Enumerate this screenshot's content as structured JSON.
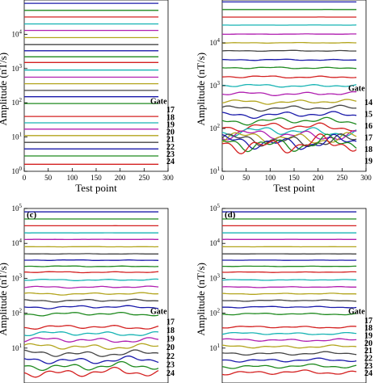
{
  "chart_data": [
    {
      "panel_label": "",
      "type": "line",
      "xlabel": "Test point",
      "ylabel": "Amplitude (nT/s)",
      "x_ticks": [
        "0",
        "50",
        "100",
        "150",
        "200",
        "250",
        "300"
      ],
      "y_ticks": [
        {
          "base": "10",
          "exp": "0"
        },
        {
          "base": "10",
          "exp": "1"
        },
        {
          "base": "10",
          "exp": "2"
        },
        {
          "base": "10",
          "exp": "3"
        },
        {
          "base": "10",
          "exp": "4"
        }
      ],
      "y_scale": "log",
      "xlim": [
        0,
        300
      ],
      "ylim": [
        1,
        100000
      ],
      "gate_title": "Gate",
      "gate_labels": [
        "17",
        "18",
        "19",
        "20",
        "21",
        "22",
        "23",
        "24"
      ],
      "series_levels": [
        80000,
        50000,
        32000,
        20000,
        13000,
        8000,
        5000,
        3300,
        2200,
        1500,
        900,
        560,
        360,
        230,
        150,
        95,
        40,
        26,
        17,
        11,
        7,
        4.5,
        2.8,
        1.6
      ],
      "noise_amplitude": 0
    },
    {
      "panel_label": "",
      "type": "line",
      "xlabel": "Test point",
      "ylabel": "Amplitude (nT/s)",
      "x_ticks": [
        "0",
        "50",
        "100",
        "150",
        "200",
        "250",
        "300"
      ],
      "y_ticks": [
        {
          "base": "10",
          "exp": "1"
        },
        {
          "base": "10",
          "exp": "2"
        },
        {
          "base": "10",
          "exp": "3"
        },
        {
          "base": "10",
          "exp": "4"
        }
      ],
      "y_scale": "log",
      "xlim": [
        0,
        300
      ],
      "ylim": [
        10,
        100000
      ],
      "gate_title": "Gate",
      "gate_labels": [
        "14",
        "15",
        "16",
        "17",
        "18",
        "19"
      ],
      "series_levels": [
        90000,
        60000,
        40000,
        26000,
        16000,
        10000,
        6500,
        4000,
        2600,
        1600,
        1000,
        650,
        420,
        300,
        210,
        150,
        110,
        85,
        70,
        60,
        52,
        47,
        44,
        42
      ],
      "noise_amplitude": 1
    },
    {
      "panel_label": "(c)",
      "type": "line",
      "xlabel": "",
      "ylabel": "Amplitude (nT/s)",
      "x_ticks": [],
      "y_ticks": [
        {
          "base": "10",
          "exp": "1"
        },
        {
          "base": "10",
          "exp": "2"
        },
        {
          "base": "10",
          "exp": "3"
        },
        {
          "base": "10",
          "exp": "4"
        },
        {
          "base": "10",
          "exp": "5"
        }
      ],
      "y_scale": "log",
      "xlim": [
        0,
        300
      ],
      "ylim": [
        1,
        100000
      ],
      "gate_title": "Gate",
      "gate_labels": [
        "17",
        "18",
        "19",
        "20",
        "22",
        "23",
        "24"
      ],
      "series_levels": [
        80000,
        50000,
        32000,
        20000,
        13000,
        8000,
        5000,
        3300,
        2200,
        1500,
        900,
        560,
        360,
        230,
        150,
        95,
        40,
        26,
        17,
        11,
        7,
        4.5,
        3.0,
        2.0
      ],
      "noise_amplitude": 0.6
    },
    {
      "panel_label": "(d)",
      "type": "line",
      "xlabel": "",
      "ylabel": "Amplitude (nT/s)",
      "x_ticks": [],
      "y_ticks": [
        {
          "base": "10",
          "exp": "1"
        },
        {
          "base": "10",
          "exp": "2"
        },
        {
          "base": "10",
          "exp": "3"
        },
        {
          "base": "10",
          "exp": "4"
        },
        {
          "base": "10",
          "exp": "5"
        }
      ],
      "y_scale": "log",
      "xlim": [
        0,
        300
      ],
      "ylim": [
        1,
        100000
      ],
      "gate_title": "Gate",
      "gate_labels": [
        "17",
        "18",
        "19",
        "20",
        "21",
        "22",
        "23",
        "24"
      ],
      "series_levels": [
        80000,
        50000,
        32000,
        20000,
        13000,
        8000,
        5000,
        3300,
        2200,
        1500,
        900,
        560,
        360,
        230,
        150,
        95,
        40,
        26,
        17,
        11,
        7,
        4.5,
        3.0,
        2.0
      ],
      "noise_amplitude": 0.3
    }
  ],
  "series_colors": [
    "#1a1aaa",
    "#1f8a1f",
    "#d42020",
    "#18b4b4",
    "#b01eb0",
    "#b3a51e",
    "#444444"
  ]
}
